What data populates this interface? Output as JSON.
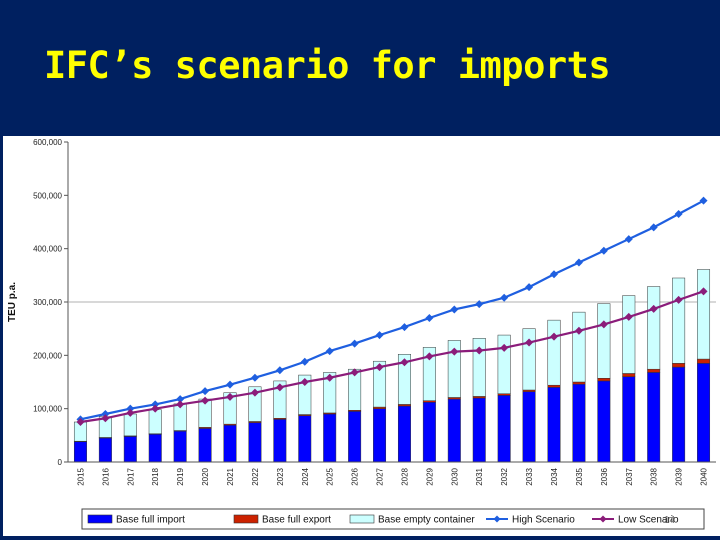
{
  "slide": {
    "title": "IFC’s scenario for imports",
    "page_number": "14"
  },
  "colors": {
    "header_bg": "#002060",
    "title_text": "#FFFF00",
    "base_full_import": "#0000FF",
    "base_full_export": "#CC2200",
    "base_empty_container": "#CCFFFF",
    "high_scenario": "#1F5FE0",
    "low_scenario": "#8B1C7A"
  },
  "chart_data": {
    "type": "bar",
    "stacked": true,
    "title": "",
    "xlabel": "",
    "ylabel": "TEU p.a.",
    "ylim": [
      0,
      600000
    ],
    "y_ticks": [
      0,
      100000,
      200000,
      300000,
      400000,
      500000,
      600000
    ],
    "y_tick_labels": [
      "0",
      "100,000",
      "200,000",
      "300,000",
      "400,000",
      "500,000",
      "600,000"
    ],
    "grid": "horizontal at 300,000",
    "legend_position": "bottom",
    "categories": [
      "2015",
      "2016",
      "2017",
      "2018",
      "2019",
      "2020",
      "2021",
      "2022",
      "2023",
      "2024",
      "2025",
      "2026",
      "2027",
      "2028",
      "2029",
      "2030",
      "2031",
      "2032",
      "2033",
      "2034",
      "2035",
      "2036",
      "2037",
      "2038",
      "2039",
      "2040"
    ],
    "series": [
      {
        "name": "Base full import",
        "type": "bar",
        "values": [
          38000,
          45000,
          48000,
          52000,
          58000,
          63000,
          69000,
          74000,
          80000,
          87000,
          90000,
          95000,
          100000,
          105000,
          112000,
          118000,
          120000,
          125000,
          132000,
          140000,
          146000,
          152000,
          160000,
          168000,
          178000,
          185000
        ]
      },
      {
        "name": "Base full export",
        "type": "bar",
        "values": [
          1000,
          1000,
          1000,
          1000,
          1000,
          2000,
          2000,
          2000,
          2000,
          2000,
          2000,
          2000,
          3000,
          3000,
          3000,
          3000,
          3000,
          3000,
          3000,
          4000,
          4000,
          5000,
          6000,
          6000,
          7000,
          8000
        ]
      },
      {
        "name": "Base empty container",
        "type": "bar",
        "values": [
          36000,
          39000,
          41000,
          45000,
          50000,
          53000,
          59000,
          65000,
          70000,
          74000,
          76000,
          77000,
          86000,
          94000,
          100000,
          107000,
          109000,
          110000,
          115000,
          122000,
          131000,
          140000,
          146000,
          155000,
          160000,
          168000
        ]
      },
      {
        "name": "High Scenario",
        "type": "line",
        "values": [
          80000,
          90000,
          100000,
          108000,
          118000,
          133000,
          145000,
          158000,
          172000,
          188000,
          208000,
          222000,
          238000,
          253000,
          270000,
          286000,
          296000,
          308000,
          328000,
          352000,
          374000,
          396000,
          418000,
          440000,
          465000,
          490000
        ]
      },
      {
        "name": "Low Scenario",
        "type": "line",
        "values": [
          75000,
          82000,
          92000,
          100000,
          108000,
          115000,
          122000,
          130000,
          140000,
          150000,
          158000,
          168000,
          178000,
          187000,
          198000,
          207000,
          209000,
          214000,
          224000,
          235000,
          246000,
          258000,
          272000,
          287000,
          304000,
          320000
        ]
      }
    ]
  }
}
